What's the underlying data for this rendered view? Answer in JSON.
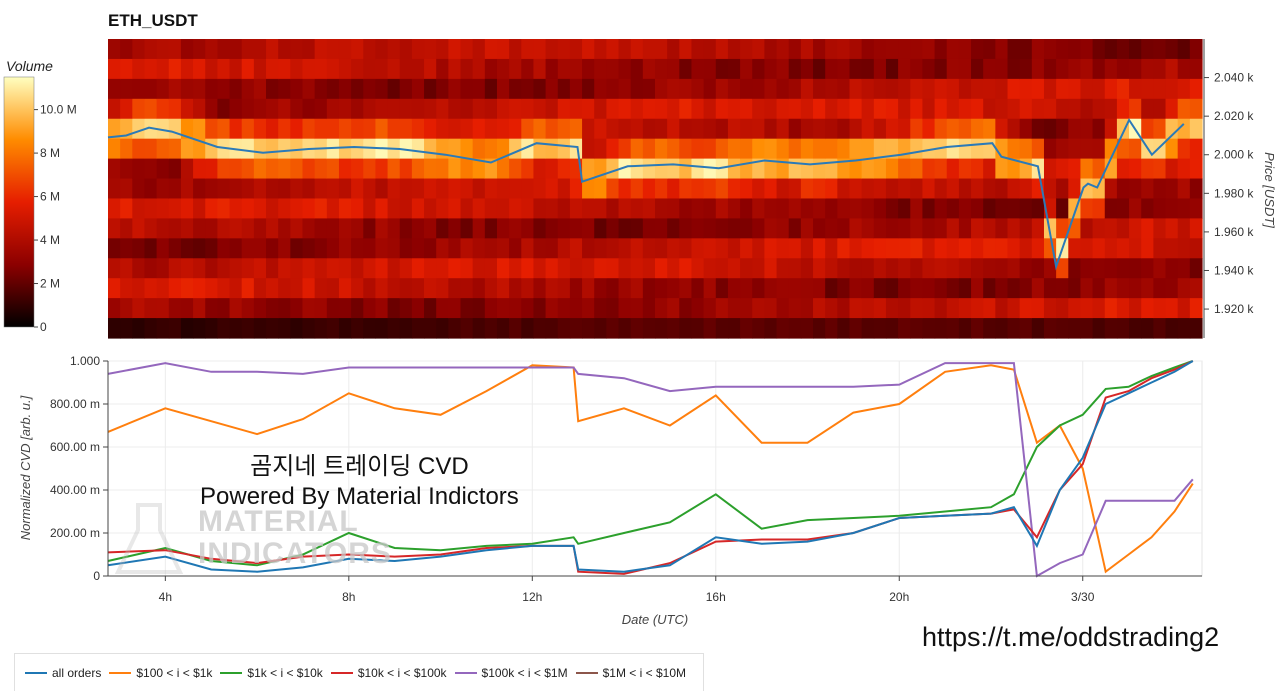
{
  "title": "ETH_USDT",
  "heatmap": {
    "colorbar_title": "Volume",
    "colorbar_ticks": [
      "0",
      "2 M",
      "4 M",
      "6 M",
      "8 M",
      "10.0 M"
    ],
    "price_axis_label": "Price [USDT]",
    "price_ticks": [
      "2.040 k",
      "2.020 k",
      "2.000 k",
      "1.980 k",
      "1.960 k",
      "1.940 k",
      "1.920 k"
    ],
    "colors": {
      "low": "#000000",
      "mid": "#e61e00",
      "high": "#ffff80"
    }
  },
  "watermark": {
    "line1": "곰지네 트레이딩 CVD",
    "line2": "Powered By Material Indictors",
    "logo_line1": "MATERIAL",
    "logo_line2": "INDICATORS"
  },
  "url_text": "https://t.me/oddstrading2",
  "legend": [
    {
      "label": "all orders",
      "color": "#1f77b4"
    },
    {
      "label": "$100 < i < $1k",
      "color": "#ff7f0e"
    },
    {
      "label": "$1k < i < $10k",
      "color": "#2ca02c"
    },
    {
      "label": "$10k < i < $100k",
      "color": "#d62728"
    },
    {
      "label": "$100k < i < $1M",
      "color": "#9467bd"
    },
    {
      "label": "$1M < i < $10M",
      "color": "#8c564b"
    }
  ],
  "chart_data": [
    {
      "type": "heatmap",
      "title": "ETH_USDT",
      "ylabel": "Price [USDT]",
      "ylim": [
        1905,
        2060
      ],
      "colorbar": {
        "label": "Volume",
        "range": [
          0,
          11500000
        ]
      },
      "price_series": {
        "name": "Price",
        "color": "#2a7ab8",
        "hours": [
          2.6,
          3.0,
          3.5,
          4.0,
          5.0,
          6.0,
          7.0,
          8.0,
          9.0,
          10.0,
          11.0,
          12.0,
          12.9,
          13.0,
          14.0,
          15.0,
          16.0,
          17.0,
          18.0,
          19.0,
          20.0,
          21.0,
          22.0,
          22.2,
          23.0,
          23.4,
          24.0,
          24.1,
          24.3,
          25.0,
          25.5,
          26.2
        ],
        "prices": [
          2009,
          2010,
          2014,
          2012,
          2004,
          2001,
          2003,
          2004,
          2003,
          2000,
          1996,
          2006,
          2004,
          1986,
          1994,
          1995,
          1993,
          1997,
          1995,
          1997,
          2000,
          2004,
          2006,
          1999,
          1994,
          1942,
          1983,
          1985,
          1983,
          2018,
          2000,
          2016
        ]
      }
    },
    {
      "type": "line",
      "xlabel": "Date (UTC)",
      "ylabel": "Normalized CVD [arb. u.]",
      "x_ticks": [
        "4h",
        "8h",
        "12h",
        "16h",
        "20h",
        "3/30"
      ],
      "y_ticks": [
        "0",
        "200.00 m",
        "400.00 m",
        "600.00 m",
        "800.00 m",
        "1.000"
      ],
      "xlim_hours": [
        2.75,
        26.6
      ],
      "ylim": [
        0,
        1
      ],
      "x_hours": [
        2.75,
        4,
        5,
        6,
        7,
        8,
        9,
        10,
        11,
        12,
        12.9,
        13,
        14,
        15,
        16,
        17,
        18,
        19,
        20,
        21,
        22,
        22.5,
        23,
        23.5,
        24,
        24.5,
        25,
        25.5,
        26,
        26.4
      ],
      "series": [
        {
          "name": "all orders",
          "values": [
            0.05,
            0.09,
            0.03,
            0.02,
            0.04,
            0.08,
            0.07,
            0.09,
            0.12,
            0.14,
            0.14,
            0.03,
            0.02,
            0.05,
            0.18,
            0.15,
            0.16,
            0.2,
            0.27,
            0.28,
            0.29,
            0.32,
            0.14,
            0.4,
            0.55,
            0.8,
            0.85,
            0.9,
            0.95,
            1.0
          ]
        },
        {
          "name": "$100 < i < $1k",
          "values": [
            0.67,
            0.78,
            0.72,
            0.66,
            0.73,
            0.85,
            0.78,
            0.75,
            0.86,
            0.98,
            0.97,
            0.72,
            0.78,
            0.7,
            0.84,
            0.62,
            0.62,
            0.76,
            0.8,
            0.95,
            0.98,
            0.96,
            0.62,
            0.7,
            0.5,
            0.02,
            0.1,
            0.18,
            0.3,
            0.43
          ]
        },
        {
          "name": "$1k < i < $10k",
          "values": [
            0.07,
            0.13,
            0.07,
            0.05,
            0.1,
            0.2,
            0.13,
            0.12,
            0.14,
            0.15,
            0.18,
            0.15,
            0.2,
            0.25,
            0.38,
            0.22,
            0.26,
            0.27,
            0.28,
            0.3,
            0.32,
            0.38,
            0.6,
            0.7,
            0.75,
            0.87,
            0.88,
            0.93,
            0.97,
            1.0
          ]
        },
        {
          "name": "$10k < i < $100k",
          "values": [
            0.11,
            0.12,
            0.08,
            0.06,
            0.09,
            0.1,
            0.09,
            0.1,
            0.13,
            0.14,
            0.14,
            0.02,
            0.01,
            0.06,
            0.16,
            0.17,
            0.17,
            0.2,
            0.27,
            0.28,
            0.29,
            0.31,
            0.18,
            0.4,
            0.52,
            0.83,
            0.86,
            0.92,
            0.96,
            1.0
          ]
        },
        {
          "name": "$100k < i < $1M",
          "values": [
            0.94,
            0.99,
            0.95,
            0.95,
            0.94,
            0.97,
            0.97,
            0.97,
            0.97,
            0.97,
            0.97,
            0.94,
            0.92,
            0.86,
            0.88,
            0.88,
            0.88,
            0.88,
            0.89,
            0.99,
            0.99,
            0.99,
            0.0,
            0.06,
            0.1,
            0.35,
            0.35,
            0.35,
            0.35,
            0.45
          ]
        },
        {
          "name": "$1M < i < $10M",
          "values": []
        }
      ]
    }
  ]
}
